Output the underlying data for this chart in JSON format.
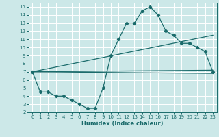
{
  "xlabel": "Humidex (Indice chaleur)",
  "ylabel": "",
  "bg_color": "#cce8e8",
  "line_color": "#1a6b6b",
  "grid_color": "#ffffff",
  "xlim": [
    -0.5,
    23.5
  ],
  "ylim": [
    2,
    15.5
  ],
  "xticks": [
    0,
    1,
    2,
    3,
    4,
    5,
    6,
    7,
    8,
    9,
    10,
    11,
    12,
    13,
    14,
    15,
    16,
    17,
    18,
    19,
    20,
    21,
    22,
    23
  ],
  "yticks": [
    2,
    3,
    4,
    5,
    6,
    7,
    8,
    9,
    10,
    11,
    12,
    13,
    14,
    15
  ],
  "line1_x": [
    0,
    1,
    2,
    3,
    4,
    5,
    6,
    7,
    8,
    9,
    10,
    11,
    12,
    13,
    14,
    15,
    16,
    17,
    18,
    19,
    20,
    21,
    22,
    23
  ],
  "line1_y": [
    7,
    4.5,
    4.5,
    4,
    4,
    3.5,
    3,
    2.5,
    2.5,
    5,
    9,
    11,
    13,
    13,
    14.5,
    15,
    14,
    12,
    11.5,
    10.5,
    10.5,
    10,
    9.5,
    7
  ],
  "line2_x": [
    0,
    23
  ],
  "line2_y": [
    7,
    11.5
  ],
  "line3_x": [
    0,
    23
  ],
  "line3_y": [
    7,
    7.2
  ],
  "line4_x": [
    0,
    23
  ],
  "line4_y": [
    7,
    6.8
  ]
}
